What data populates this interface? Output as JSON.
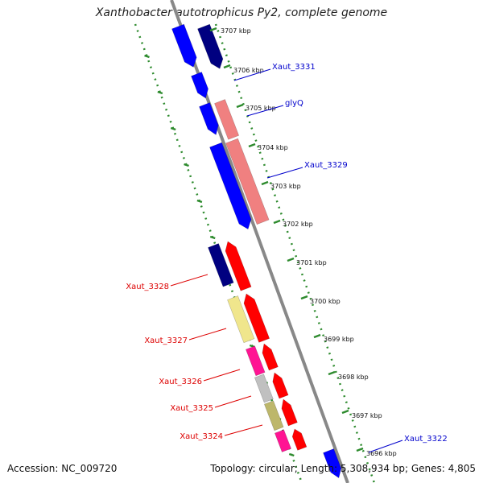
{
  "title": "Xanthobacter autotrophicus Py2, complete genome",
  "footer": {
    "accession": "Accession: NC_009720",
    "topology": "Topology: circular; Length: 5,308,934 bp; Genes: 4,805"
  },
  "colors": {
    "backbone": "#888888",
    "outer_ruler": "#2e8b2e",
    "inner_ruler": "#2e8b2e",
    "blue": "#0000ff",
    "navy": "#000080",
    "salmon": "#f08080",
    "red": "#ff0000",
    "khaki": "#f0e68c",
    "magenta": "#ff1493",
    "gray": "#c0c0c0",
    "olive": "#bdb76b",
    "label_blue": "#0000cc",
    "label_red": "#dd0000"
  },
  "ticks": [
    {
      "label": "3707 kbp"
    },
    {
      "label": "3706 kbp"
    },
    {
      "label": "3705 kbp"
    },
    {
      "label": "3704 kbp"
    },
    {
      "label": "3703 kbp"
    },
    {
      "label": "3702 kbp"
    },
    {
      "label": "3701 kbp"
    },
    {
      "label": "3700 kbp"
    },
    {
      "label": "3699 kbp"
    },
    {
      "label": "3698 kbp"
    },
    {
      "label": "3697 kbp"
    },
    {
      "label": "3696 kbp"
    }
  ],
  "gene_labels": [
    {
      "text": "Xaut_3331",
      "color": "label_blue"
    },
    {
      "text": "glyQ",
      "color": "label_blue"
    },
    {
      "text": "Xaut_3329",
      "color": "label_blue"
    },
    {
      "text": "Xaut_3328",
      "color": "label_red"
    },
    {
      "text": "Xaut_3327",
      "color": "label_red"
    },
    {
      "text": "Xaut_3326",
      "color": "label_red"
    },
    {
      "text": "Xaut_3325",
      "color": "label_red"
    },
    {
      "text": "Xaut_3324",
      "color": "label_red"
    },
    {
      "text": "Xaut_3322",
      "color": "label_blue"
    }
  ],
  "features": [
    {
      "color": "blue"
    },
    {
      "color": "navy"
    },
    {
      "color": "blue"
    },
    {
      "color": "blue"
    },
    {
      "color": "salmon"
    },
    {
      "color": "blue"
    },
    {
      "color": "salmon"
    },
    {
      "color": "navy"
    },
    {
      "color": "red"
    },
    {
      "color": "khaki"
    },
    {
      "color": "red"
    },
    {
      "color": "magenta"
    },
    {
      "color": "red"
    },
    {
      "color": "gray"
    },
    {
      "color": "red"
    },
    {
      "color": "olive"
    },
    {
      "color": "red"
    },
    {
      "color": "magenta"
    },
    {
      "color": "red"
    },
    {
      "color": "blue"
    }
  ]
}
